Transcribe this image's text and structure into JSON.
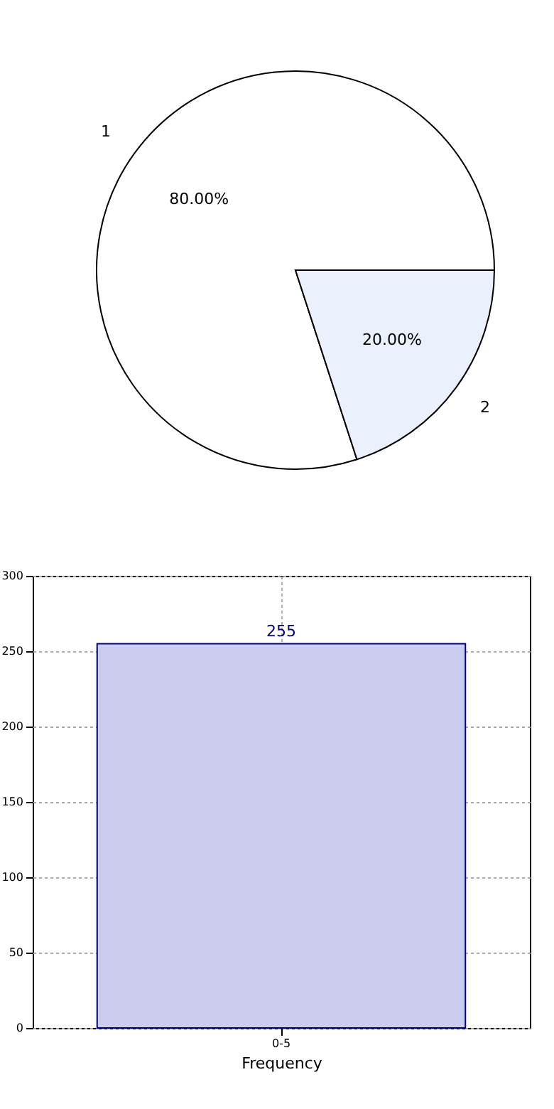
{
  "chart_data": [
    {
      "type": "pie",
      "categories": [
        "1",
        "2"
      ],
      "values": [
        80,
        20
      ],
      "colors": [
        "#ffffff",
        "#eaf0fc"
      ],
      "value_labels": [
        "80.00%",
        "20.00%"
      ]
    },
    {
      "type": "bar",
      "categories": [
        "0-5"
      ],
      "values": [
        255
      ],
      "color": "#ccccee",
      "xlabel": "Frequency",
      "ylim": [
        0,
        300
      ],
      "yticks": [
        0,
        50,
        100,
        150,
        200,
        250,
        300
      ],
      "grid": true,
      "data_labels": true
    }
  ]
}
